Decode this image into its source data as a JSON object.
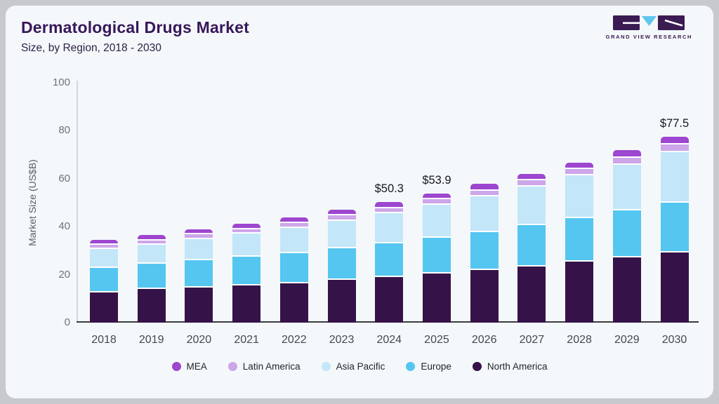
{
  "header": {
    "title": "Dermatological Drugs Market",
    "subtitle": "Size, by Region, 2018 - 2030"
  },
  "logo": {
    "text": "GRAND VIEW RESEARCH",
    "purple": "#3a1b52",
    "cyan": "#5ec6ef"
  },
  "chart_data": {
    "type": "bar",
    "stacked": true,
    "title": "Dermatological Drugs Market Size, by Region, 2018 - 2030",
    "ylabel": "Market Size (US$B)",
    "ylim": [
      0,
      100
    ],
    "yticks": [
      0,
      20,
      40,
      60,
      80,
      100
    ],
    "grid": false,
    "legend_position": "bottom",
    "categories": [
      "2018",
      "2019",
      "2020",
      "2021",
      "2022",
      "2023",
      "2024",
      "2025",
      "2026",
      "2027",
      "2028",
      "2029",
      "2030"
    ],
    "series": [
      {
        "name": "North America",
        "color": "#351348",
        "values": [
          13.2,
          14.5,
          15.2,
          16.0,
          17.0,
          18.3,
          19.6,
          21.0,
          22.5,
          24.0,
          26.0,
          27.8,
          29.8
        ]
      },
      {
        "name": "Europe",
        "color": "#55c6f0",
        "values": [
          10.2,
          10.5,
          11.5,
          12.2,
          12.6,
          13.4,
          14.0,
          14.9,
          15.8,
          17.3,
          18.1,
          19.6,
          20.8
        ]
      },
      {
        "name": "Asia Pacific",
        "color": "#c3e6f8",
        "values": [
          7.8,
          8.0,
          8.6,
          9.5,
          10.5,
          11.4,
          12.6,
          13.7,
          14.9,
          16.0,
          17.8,
          19.0,
          21.1
        ]
      },
      {
        "name": "Latin America",
        "color": "#cda6ea",
        "values": [
          1.8,
          1.9,
          2.0,
          1.8,
          2.1,
          2.2,
          2.1,
          2.3,
          2.3,
          2.6,
          2.7,
          2.8,
          3.2
        ]
      },
      {
        "name": "MEA",
        "color": "#9d46cf",
        "values": [
          1.5,
          1.6,
          1.7,
          1.8,
          1.8,
          1.8,
          2.0,
          2.0,
          2.3,
          2.2,
          2.2,
          2.6,
          2.6
        ]
      }
    ],
    "totals": [
      34.5,
      36.5,
      39.0,
      41.3,
      44.0,
      47.1,
      50.3,
      53.9,
      57.8,
      62.1,
      66.8,
      71.8,
      77.5
    ],
    "annotations": [
      {
        "category": "2024",
        "label": "$50.3"
      },
      {
        "category": "2025",
        "label": "$53.9"
      },
      {
        "category": "2030",
        "label": "$77.5"
      }
    ]
  }
}
